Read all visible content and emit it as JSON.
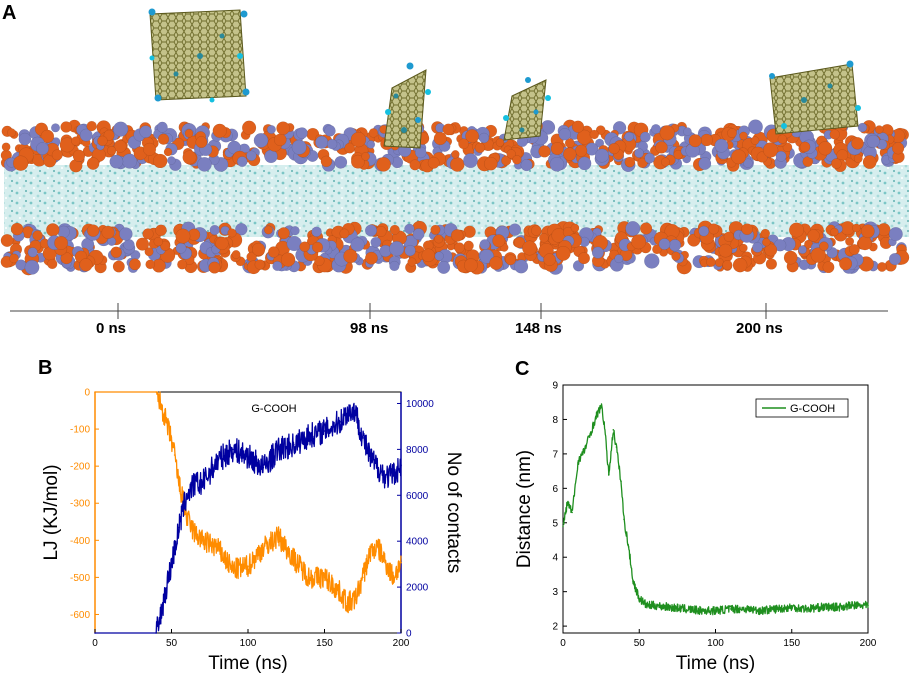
{
  "panels": {
    "a": {
      "letter": "A"
    },
    "b": {
      "letter": "B"
    },
    "c": {
      "letter": "C"
    }
  },
  "timeline": {
    "labels": [
      "0 ns",
      "98 ns",
      "148 ns",
      "200 ns"
    ]
  },
  "colors": {
    "headgroup_orange": "#e0601c",
    "headgroup_blue": "#7a7fc0",
    "tail_cyan": "#bfe6e6",
    "graphene": "#9a9a5a",
    "lj_orange": "#ff8c00",
    "contacts_blue": "#0000a0",
    "distance_green": "#1f8f1f"
  },
  "chart_data": [
    {
      "type": "line",
      "id": "B",
      "title": "G-COOH",
      "xlabel": "Time (ns)",
      "ylabel": "LJ (KJ/mol)",
      "y2label": "No of contacts",
      "xlim": [
        0,
        200
      ],
      "ylim": [
        -650,
        0
      ],
      "y2lim": [
        0,
        10500
      ],
      "xticks": [
        0,
        50,
        100,
        150,
        200
      ],
      "yticks": [
        0,
        -100,
        -200,
        -300,
        -400,
        -500,
        -600
      ],
      "y2ticks": [
        0,
        2000,
        4000,
        6000,
        8000,
        10000
      ],
      "series": [
        {
          "name": "LJ (KJ/mol)",
          "axis": "left",
          "color": "#ff8c00",
          "noise": 30,
          "x": [
            0,
            40,
            42,
            45,
            50,
            52,
            55,
            58,
            60,
            65,
            70,
            80,
            90,
            100,
            110,
            120,
            130,
            140,
            150,
            160,
            165,
            170,
            175,
            180,
            185,
            190,
            195,
            200
          ],
          "y": [
            0,
            0,
            -20,
            -60,
            -130,
            -170,
            -250,
            -300,
            -340,
            -380,
            -400,
            -420,
            -480,
            -470,
            -420,
            -390,
            -450,
            -500,
            -500,
            -540,
            -570,
            -560,
            -500,
            -430,
            -420,
            -460,
            -500,
            -460
          ]
        },
        {
          "name": "No of contacts",
          "axis": "right",
          "color": "#0000a0",
          "noise": 550,
          "x": [
            0,
            40,
            42,
            45,
            50,
            55,
            58,
            60,
            65,
            70,
            80,
            90,
            100,
            110,
            120,
            130,
            140,
            150,
            160,
            165,
            170,
            175,
            180,
            185,
            190,
            195,
            200
          ],
          "y": [
            0,
            0,
            400,
            1500,
            3000,
            4600,
            5500,
            6000,
            6500,
            6500,
            7500,
            8000,
            7700,
            7200,
            8000,
            8200,
            8600,
            8800,
            9200,
            9600,
            9700,
            8500,
            7600,
            7200,
            6800,
            6900,
            7300
          ]
        }
      ]
    },
    {
      "type": "line",
      "id": "C",
      "xlabel": "Time (ns)",
      "ylabel": "Distance (nm)",
      "xlim": [
        0,
        200
      ],
      "ylim": [
        1.8,
        9
      ],
      "xticks": [
        0,
        50,
        100,
        150,
        200
      ],
      "yticks": [
        2,
        3,
        4,
        5,
        6,
        7,
        8,
        9
      ],
      "legend": "G-COOH",
      "legend_position": "top-right",
      "series": [
        {
          "name": "G-COOH",
          "color": "#1f8f1f",
          "noise": 0.12,
          "x": [
            0,
            3,
            6,
            10,
            14,
            18,
            22,
            25,
            27,
            30,
            33,
            35,
            38,
            40,
            43,
            46,
            50,
            55,
            60,
            70,
            80,
            90,
            100,
            110,
            120,
            130,
            140,
            150,
            160,
            170,
            180,
            190,
            200
          ],
          "y": [
            4.9,
            5.6,
            5.3,
            6.8,
            7.1,
            7.6,
            8.1,
            8.4,
            7.9,
            6.4,
            7.7,
            7.2,
            6.2,
            5.1,
            4.3,
            3.3,
            2.8,
            2.6,
            2.6,
            2.55,
            2.5,
            2.45,
            2.45,
            2.5,
            2.5,
            2.45,
            2.5,
            2.55,
            2.5,
            2.55,
            2.55,
            2.6,
            2.6
          ]
        }
      ]
    }
  ]
}
